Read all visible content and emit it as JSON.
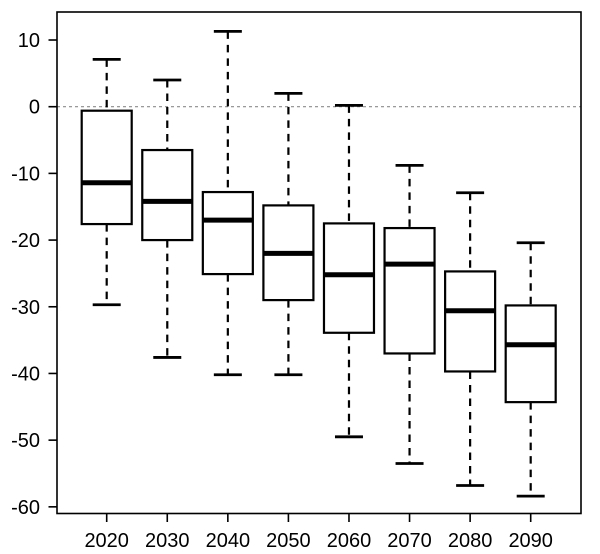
{
  "chart_data": {
    "type": "boxplot",
    "title": "",
    "xlabel": "",
    "ylabel": "",
    "categories": [
      "2020",
      "2030",
      "2040",
      "2050",
      "2060",
      "2070",
      "2080",
      "2090"
    ],
    "series": [
      {
        "category": "2020",
        "whisker_low": -29.7,
        "q1": -17.6,
        "median": -11.4,
        "q3": -0.6,
        "whisker_high": 7.1
      },
      {
        "category": "2030",
        "whisker_low": -37.6,
        "q1": -20.0,
        "median": -14.2,
        "q3": -6.5,
        "whisker_high": 4.0
      },
      {
        "category": "2040",
        "whisker_low": -40.2,
        "q1": -25.1,
        "median": -17.0,
        "q3": -12.8,
        "whisker_high": 11.3
      },
      {
        "category": "2050",
        "whisker_low": -40.2,
        "q1": -29.0,
        "median": -22.0,
        "q3": -14.8,
        "whisker_high": 2.0
      },
      {
        "category": "2060",
        "whisker_low": -49.5,
        "q1": -33.9,
        "median": -25.2,
        "q3": -17.5,
        "whisker_high": 0.2
      },
      {
        "category": "2070",
        "whisker_low": -53.5,
        "q1": -37.0,
        "median": -23.6,
        "q3": -18.2,
        "whisker_high": -8.8
      },
      {
        "category": "2080",
        "whisker_low": -56.8,
        "q1": -39.7,
        "median": -30.6,
        "q3": -24.7,
        "whisker_high": -12.9
      },
      {
        "category": "2090",
        "whisker_low": -58.4,
        "q1": -44.3,
        "median": -35.7,
        "q3": -29.8,
        "whisker_high": -20.4
      }
    ],
    "yticks": [
      10,
      0,
      -10,
      -20,
      -30,
      -40,
      -50,
      -60
    ],
    "ylim": [
      -61.0,
      14.2
    ],
    "grid": "off",
    "legend": "none",
    "reference_line": {
      "y": 0,
      "style": "dashed",
      "color": "#8c8c8c"
    },
    "colors": {
      "background": "#ffffff",
      "box_fill": "#ffffff",
      "stroke": "#000000"
    }
  }
}
